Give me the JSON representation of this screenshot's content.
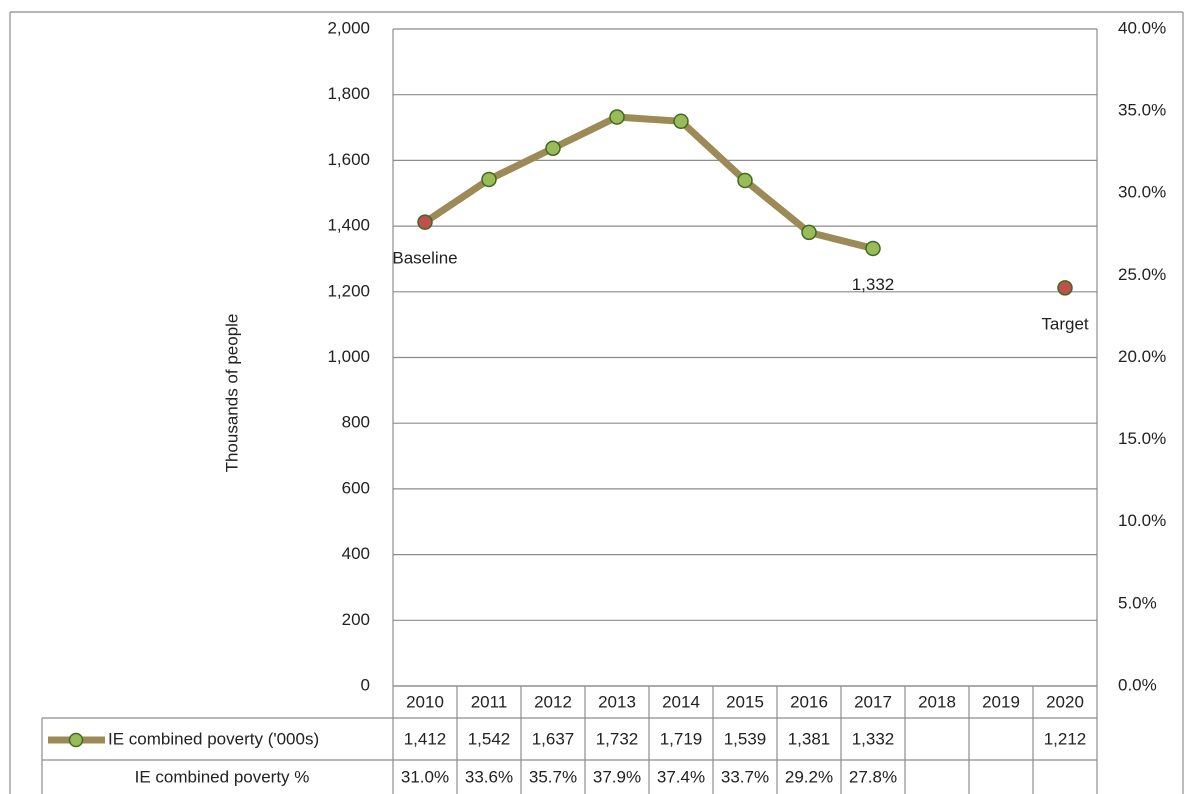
{
  "chart_data": {
    "type": "line",
    "y_label": "Thousands of people",
    "categories": [
      "2010",
      "2011",
      "2012",
      "2013",
      "2014",
      "2015",
      "2016",
      "2017",
      "2018",
      "2019",
      "2020"
    ],
    "series": [
      {
        "name": "IE combined poverty ('000s)",
        "color": "#9c8b57",
        "marker_color": "#9bbb59",
        "point_colors": [
          "#c0504d",
          "#9bbb59",
          "#9bbb59",
          "#9bbb59",
          "#9bbb59",
          "#9bbb59",
          "#9bbb59",
          "#9bbb59",
          null,
          null,
          "#c0504d"
        ],
        "values": [
          1412,
          1542,
          1637,
          1732,
          1719,
          1539,
          1381,
          1332,
          null,
          null,
          1212
        ],
        "value_labels": [
          "1,412",
          "1,542",
          "1,637",
          "1,732",
          "1,719",
          "1,539",
          "1,381",
          "1,332",
          null,
          null,
          "1,212"
        ]
      },
      {
        "name": "IE combined poverty %",
        "axis": "y2",
        "values": [
          31.0,
          33.6,
          35.7,
          37.9,
          37.4,
          33.7,
          29.2,
          27.8,
          null,
          null,
          null
        ],
        "value_labels": [
          "31.0%",
          "33.6%",
          "35.7%",
          "37.9%",
          "37.4%",
          "33.7%",
          "29.2%",
          "27.8%",
          null,
          null,
          null
        ]
      }
    ],
    "annotations": [
      {
        "text": "Baseline",
        "x": "2010"
      },
      {
        "text": "1,332",
        "x": "2017"
      },
      {
        "text": "Target",
        "x": "2020"
      }
    ],
    "ylim": [
      0,
      2000
    ],
    "yticks": [
      0,
      {
        "value": 200,
        "label": "200"
      },
      400,
      600,
      800,
      {
        "value": 1000,
        "label": "1,000"
      },
      {
        "value": 1200,
        "label": "1,200"
      },
      {
        "value": 1400,
        "label": "1,400"
      },
      {
        "value": 1600,
        "label": "1,600"
      },
      {
        "value": 1800,
        "label": "1,800"
      },
      {
        "value": 2000,
        "label": "2,000"
      }
    ],
    "y2lim": [
      0,
      40
    ],
    "y2ticks": [
      {
        "value": 0,
        "label": "0.0%"
      },
      {
        "value": 5,
        "label": "5.0%"
      },
      {
        "value": 10,
        "label": "10.0%"
      },
      {
        "value": 15,
        "label": "15.0%"
      },
      {
        "value": 20,
        "label": "20.0%"
      },
      {
        "value": 25,
        "label": "25.0%"
      },
      {
        "value": 30,
        "label": "30.0%"
      },
      {
        "value": 35,
        "label": "35.0%"
      },
      {
        "value": 40,
        "label": "40.0%"
      }
    ],
    "grid": true,
    "data_table": true
  }
}
